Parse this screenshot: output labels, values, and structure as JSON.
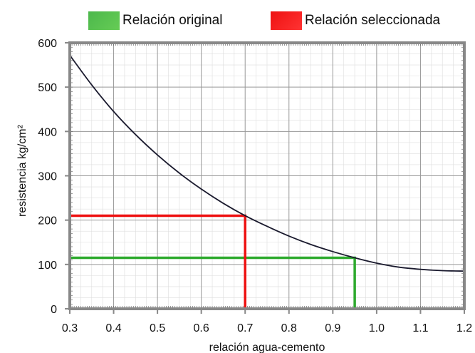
{
  "chart_data": {
    "type": "line",
    "xlabel": "relación agua-cemento",
    "ylabel": "resistencia kg/cm²",
    "xlim": [
      0.3,
      1.2
    ],
    "ylim": [
      0,
      600
    ],
    "xticks": [
      "0.3",
      "0.4",
      "0.5",
      "0.6",
      "0.7",
      "0.8",
      "0.9",
      "1.0",
      "1.1",
      "1.2"
    ],
    "yticks": [
      "0",
      "100",
      "200",
      "300",
      "400",
      "500",
      "600"
    ],
    "grid": true,
    "legend_position": "top",
    "curve": {
      "color": "#1a1a2e",
      "x": [
        0.3,
        0.35,
        0.4,
        0.45,
        0.5,
        0.55,
        0.6,
        0.65,
        0.7,
        0.75,
        0.8,
        0.85,
        0.9,
        0.95,
        1.0,
        1.05,
        1.1,
        1.15,
        1.2
      ],
      "y": [
        572,
        505,
        445,
        393,
        347,
        306,
        270,
        238,
        210,
        186,
        164,
        145,
        129,
        115,
        103,
        94,
        89,
        86,
        85
      ]
    },
    "legend": [
      {
        "label": "Relación original",
        "color": "#2eaa2e",
        "swatch_color": "#55bb44"
      },
      {
        "label": "Relación seleccionada",
        "color": "#ee1111",
        "swatch_color": "#ee1111"
      }
    ],
    "markers": [
      {
        "name": "Relación original",
        "x": 0.95,
        "y": 115,
        "color": "#2eaa2e"
      },
      {
        "name": "Relación seleccionada",
        "x": 0.7,
        "y": 210,
        "color": "#ee1111"
      }
    ]
  }
}
